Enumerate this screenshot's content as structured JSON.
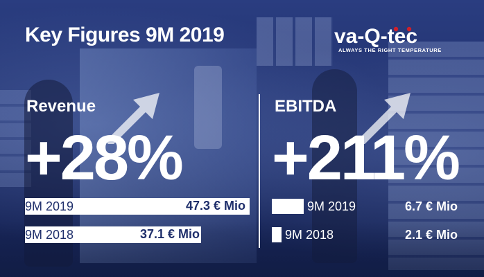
{
  "title": "Key Figures 9M 2019",
  "logo": {
    "name": "va-Q-tec",
    "tagline": "ALWAYS THE RIGHT TEMPERATURE"
  },
  "revenue": {
    "label": "Revenue",
    "growth": "+28%",
    "rows": [
      {
        "period": "9M 2019",
        "value": "47.3 € Mio",
        "amount": 47.3
      },
      {
        "period": "9M 2018",
        "value": "37.1 € Mio",
        "amount": 37.1
      }
    ]
  },
  "ebitda": {
    "label": "EBITDA",
    "growth": "+211%",
    "rows": [
      {
        "period": "9M 2019",
        "value": "6.7 € Mio",
        "amount": 6.7
      },
      {
        "period": "9M 2018",
        "value": "2.1 € Mio",
        "amount": 2.1
      }
    ]
  },
  "colors": {
    "background": "#20316e",
    "text": "#ffffff",
    "bar_text": "#1f2f6b",
    "logo_red": "#d0202a"
  }
}
